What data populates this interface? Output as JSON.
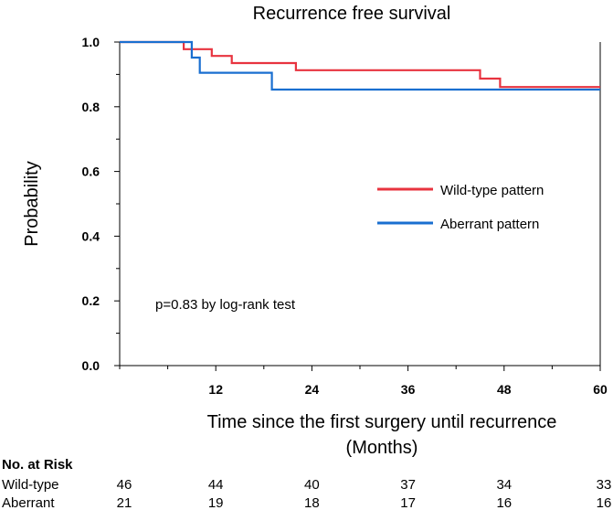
{
  "chart_data": {
    "type": "line",
    "title": "Recurrence free survival",
    "xlabel": [
      "Time since the first surgery until recurrence",
      "(Months)"
    ],
    "ylabel": "Probability",
    "xlim": [
      0,
      60
    ],
    "ylim": [
      0.0,
      1.0
    ],
    "x_ticks": [
      12,
      24,
      36,
      48,
      60
    ],
    "y_ticks": [
      0.0,
      0.2,
      0.4,
      0.6,
      0.8,
      1.0
    ],
    "y_tick_labels": [
      "0.0",
      "0.2",
      "0.4",
      "0.6",
      "0.8",
      "1.0"
    ],
    "legend_position": "right",
    "series": [
      {
        "name": "Wild-type pattern",
        "color": "#e8333f",
        "steps": [
          [
            0,
            1.0
          ],
          [
            8,
            1.0
          ],
          [
            8,
            0.978
          ],
          [
            11.5,
            0.978
          ],
          [
            11.5,
            0.957
          ],
          [
            14,
            0.957
          ],
          [
            14,
            0.935
          ],
          [
            22,
            0.935
          ],
          [
            22,
            0.913
          ],
          [
            45,
            0.913
          ],
          [
            45,
            0.887
          ],
          [
            47.5,
            0.887
          ],
          [
            47.5,
            0.861
          ],
          [
            60,
            0.861
          ]
        ]
      },
      {
        "name": "Aberrant pattern",
        "color": "#1a6fd0",
        "steps": [
          [
            0,
            1.0
          ],
          [
            9,
            1.0
          ],
          [
            9,
            0.952
          ],
          [
            10,
            0.952
          ],
          [
            10,
            0.905
          ],
          [
            19,
            0.905
          ],
          [
            19,
            0.853
          ],
          [
            60,
            0.853
          ]
        ]
      }
    ],
    "annotations": [
      "p=0.83 by log-rank test"
    ],
    "risk_table": {
      "header": "No. at Risk",
      "rows": [
        {
          "label": "Wild-type",
          "values": [
            "46",
            "44",
            "40",
            "37",
            "34",
            "33"
          ]
        },
        {
          "label": "Aberrant",
          "values": [
            "21",
            "19",
            "18",
            "17",
            "16",
            "16"
          ]
        }
      ]
    }
  }
}
